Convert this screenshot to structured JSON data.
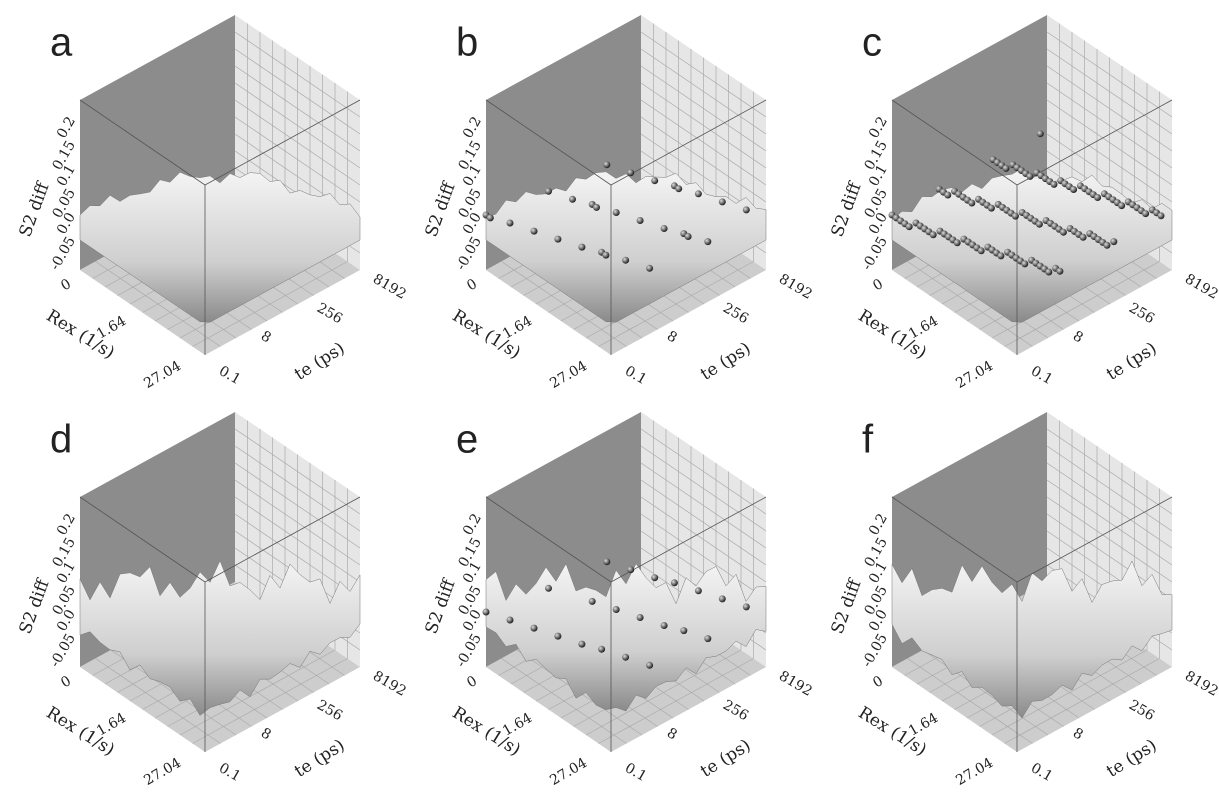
{
  "panels": [
    {
      "label": "a",
      "z_axis": {
        "title": "S2 diff",
        "ticks": [
          "0.2",
          "0.15",
          "0.1",
          "0.05",
          "0.0",
          "-0.05"
        ]
      },
      "rex_axis": {
        "title": "Rex (1/s)",
        "ticks": [
          "0",
          "1.64",
          "27.04"
        ]
      },
      "te_axis": {
        "title": "te (ps)",
        "ticks": [
          "0.1",
          "8",
          "256",
          "8192"
        ]
      }
    },
    {
      "label": "b",
      "z_axis": {
        "title": "S2 diff",
        "ticks": [
          "0.2",
          "0.15",
          "0.1",
          "0.05",
          "0.0",
          "-0.05"
        ]
      },
      "rex_axis": {
        "title": "Rex (1/s)",
        "ticks": [
          "0",
          "1.64",
          "27.04"
        ]
      },
      "te_axis": {
        "title": "te (ps)",
        "ticks": [
          "0.1",
          "8",
          "256",
          "8192"
        ]
      }
    },
    {
      "label": "c",
      "z_axis": {
        "title": "S2 diff",
        "ticks": [
          "0.2",
          "0.15",
          "0.1",
          "0.05",
          "0.0",
          "-0.05"
        ]
      },
      "rex_axis": {
        "title": "Rex (1/s)",
        "ticks": [
          "0",
          "1.64",
          "27.04"
        ]
      },
      "te_axis": {
        "title": "te (ps)",
        "ticks": [
          "0.1",
          "8",
          "256",
          "8192"
        ]
      }
    },
    {
      "label": "d",
      "z_axis": {
        "title": "S2 diff",
        "ticks": [
          "0.2",
          "0.15",
          "0.1",
          "0.05",
          "0.0",
          "-0.05"
        ]
      },
      "rex_axis": {
        "title": "Rex (1/s)",
        "ticks": [
          "0",
          "1.64",
          "27.04"
        ]
      },
      "te_axis": {
        "title": "te (ps)",
        "ticks": [
          "0.1",
          "8",
          "256",
          "8192"
        ]
      }
    },
    {
      "label": "e",
      "z_axis": {
        "title": "S2 diff",
        "ticks": [
          "0.2",
          "0.15",
          "0.1",
          "0.05",
          "0.0",
          "-0.05"
        ]
      },
      "rex_axis": {
        "title": "Rex (1/s)",
        "ticks": [
          "0",
          "1.64",
          "27.04"
        ]
      },
      "te_axis": {
        "title": "te (ps)",
        "ticks": [
          "0.1",
          "8",
          "256",
          "8192"
        ]
      }
    },
    {
      "label": "f",
      "z_axis": {
        "title": "S2 diff",
        "ticks": [
          "0.2",
          "0.15",
          "0.1",
          "0.05",
          "0.0",
          "-0.05"
        ]
      },
      "rex_axis": {
        "title": "Rex (1/s)",
        "ticks": [
          "0",
          "1.64",
          "27.04"
        ]
      },
      "te_axis": {
        "title": "te (ps)",
        "ticks": [
          "0.1",
          "8",
          "256",
          "8192"
        ]
      }
    }
  ]
}
